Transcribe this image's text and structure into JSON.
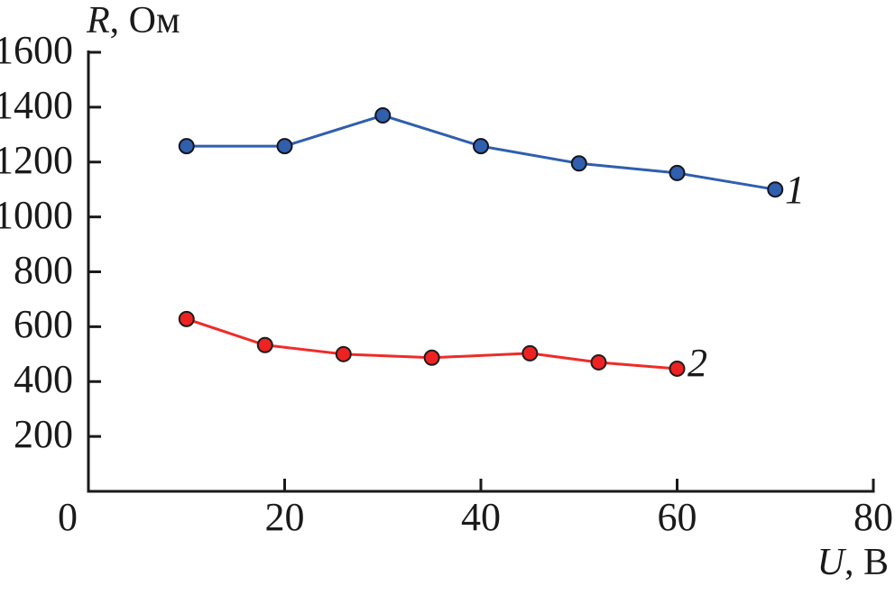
{
  "figure": {
    "background": "#ffffff",
    "text_color": "#1a1a1a"
  },
  "chart_data": {
    "type": "line",
    "title": "",
    "ylabel": "R, Ом",
    "ylabel_parts": {
      "variable": "R",
      "rest": ", Ом"
    },
    "xlabel": "U, В",
    "xlabel_parts": {
      "variable": "U",
      "rest": ", В"
    },
    "xlim": [
      0,
      80
    ],
    "ylim": [
      0,
      1600
    ],
    "x_ticks": [
      0,
      20,
      40,
      60,
      80
    ],
    "y_ticks": [
      200,
      400,
      600,
      800,
      1000,
      1200,
      1400,
      1600
    ],
    "grid": false,
    "axis_color": "#1a1a1a",
    "legend_position": "labels-right-of-last-point",
    "series": [
      {
        "name": "1",
        "color": "#2f5fad",
        "marker": "circle",
        "marker_fill": "#2f5fad",
        "marker_outline": "#14141e",
        "x": [
          10,
          20,
          30,
          40,
          50,
          60,
          70
        ],
        "y": [
          1258,
          1258,
          1370,
          1258,
          1195,
          1160,
          1100
        ]
      },
      {
        "name": "2",
        "color": "#ee2c28",
        "marker": "circle",
        "marker_fill": "#ee2222",
        "marker_outline": "#1d1d1d",
        "x": [
          10,
          18,
          26,
          35,
          45,
          52,
          60
        ],
        "y": [
          628,
          533,
          500,
          487,
          503,
          470,
          447
        ]
      }
    ]
  }
}
